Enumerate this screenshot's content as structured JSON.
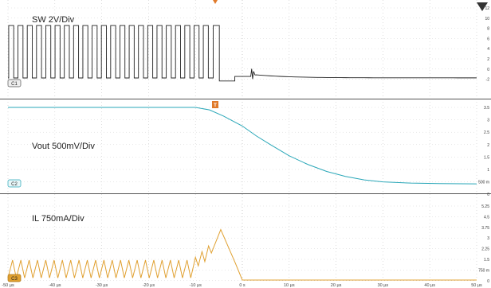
{
  "chart_data": {
    "type": "line",
    "x_ticks": [
      "-50 µs",
      "-40 µs",
      "-30 µs",
      "-20 µs",
      "-10 µs",
      "0 s",
      "10 µs",
      "20 µs",
      "30 µs",
      "40 µs",
      "50 µs"
    ],
    "trigger_marker": "T",
    "channels": [
      {
        "badge": "C1",
        "label": "SW 2V/Div",
        "color": "#222222",
        "y_ticks": [
          "12",
          "10",
          "8",
          "6",
          "4",
          "2",
          "0",
          "-2"
        ],
        "note": "switching pulses until about -1.5 µs, then flat near 0 V with a ringing spike near 2 µs"
      },
      {
        "badge": "C2",
        "label": "Vout  500mV/Div",
        "color": "#2aa7b8",
        "y_ticks": [
          "3.5",
          "3",
          "2.5",
          "2",
          "1.5",
          "1",
          "500 m",
          "0"
        ],
        "x": [
          -50,
          -30,
          -10,
          -7,
          -4,
          -2,
          0,
          3,
          6,
          10,
          14,
          18,
          22,
          26,
          30,
          36,
          42,
          50
        ],
        "y": [
          3.5,
          3.5,
          3.5,
          3.4,
          3.15,
          2.95,
          2.75,
          2.35,
          2.0,
          1.55,
          1.2,
          0.92,
          0.72,
          0.58,
          0.5,
          0.45,
          0.43,
          0.42
        ]
      },
      {
        "badge": "C3",
        "label": "IL  750mA/Div",
        "color": "#e0a030",
        "y_ticks": [
          "5.25",
          "4.5",
          "3.75",
          "3",
          "2.25",
          "1.5",
          "750 m",
          "0"
        ],
        "note": "triangle ripple about 0.1 A to 1.4 A, ramping to about 2.6 A peak near -4.5 µs, falls to 0 A by 0 s and stays at zero"
      }
    ]
  }
}
